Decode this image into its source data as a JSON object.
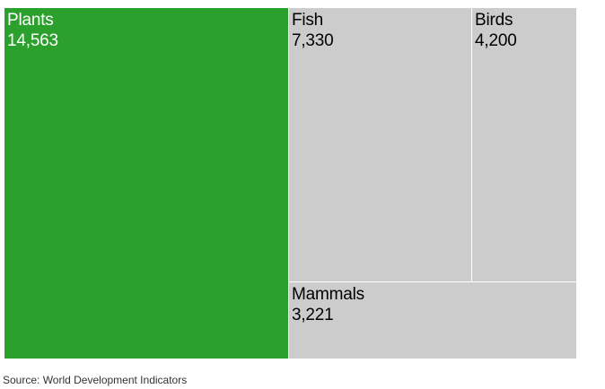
{
  "chart_data": {
    "type": "treemap",
    "items": [
      {
        "name": "Plants",
        "value": 14563,
        "display": "14,563",
        "color": "#2ca02c",
        "text_color": "#ffffff"
      },
      {
        "name": "Fish",
        "value": 7330,
        "display": "7,330",
        "color": "#cccccc",
        "text_color": "#000000"
      },
      {
        "name": "Birds",
        "value": 4200,
        "display": "4,200",
        "color": "#cccccc",
        "text_color": "#000000"
      },
      {
        "name": "Mammals",
        "value": 3221,
        "display": "3,221",
        "color": "#cccccc",
        "text_color": "#000000"
      }
    ]
  },
  "footer": {
    "source": "Source: World Development Indicators"
  }
}
